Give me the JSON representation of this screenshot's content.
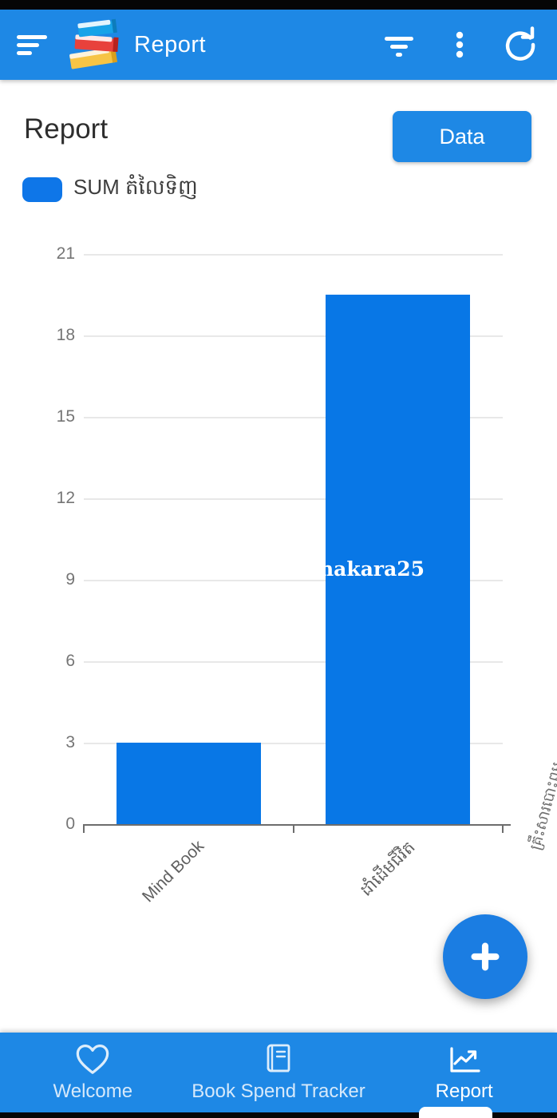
{
  "header": {
    "title": "Report",
    "icons": [
      "menu-icon",
      "books-logo-icon",
      "filter-icon",
      "overflow-menu-icon",
      "refresh-icon"
    ]
  },
  "page": {
    "title": "Report",
    "data_button_label": "Data"
  },
  "legend": {
    "series_label": "SUM តំលៃទិញ"
  },
  "chart_data": {
    "type": "bar",
    "title": "",
    "categories": [
      "Mind Book",
      "ដាំដើមជីវិត"
    ],
    "values": [
      3,
      19.5
    ],
    "legend_entry": "SUM តំលៃទិញ",
    "ylim": [
      0,
      21
    ],
    "yticks": [
      0,
      3,
      6,
      9,
      12,
      15,
      18,
      21
    ],
    "grid": true,
    "x_label_rotation_deg": -45,
    "right_clipped_label": "គ្រឹះសារបោះពុម",
    "watermark": "nakara25",
    "bar_color": "#0877e6"
  },
  "fab": {
    "icon": "plus-icon"
  },
  "bottom_nav": {
    "items": [
      {
        "label": "Welcome",
        "icon": "heart-icon",
        "active": false
      },
      {
        "label": "Book Spend Tracker",
        "icon": "book-icon",
        "active": false
      },
      {
        "label": "Report",
        "icon": "chart-icon",
        "active": true
      }
    ]
  },
  "colors": {
    "app_bar": "#1e88e5",
    "accent": "#1e88e5",
    "bar_blue": "#0877e6",
    "fab_blue": "#1b7de2",
    "legend_swatch": "#0e76e8"
  }
}
